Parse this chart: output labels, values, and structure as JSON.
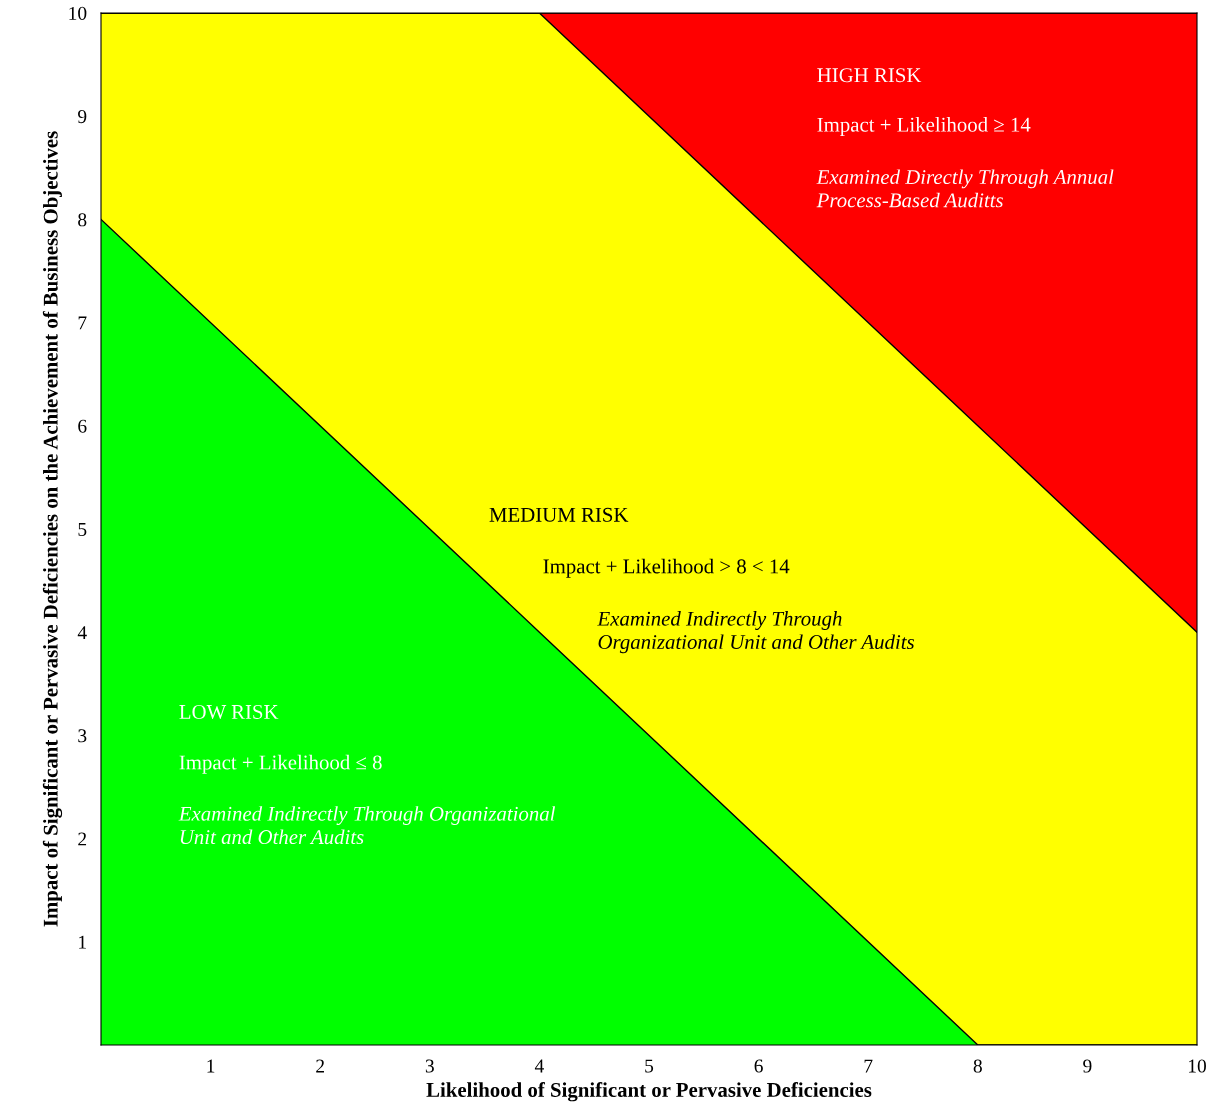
{
  "chart_data": {
    "type": "area",
    "stacked": true,
    "x": [
      0,
      4,
      8,
      10
    ],
    "series": [
      {
        "color": "#00ff00",
        "values": [
          8,
          4,
          0,
          0
        ]
      },
      {
        "color": "#ffff00",
        "values": [
          2,
          6,
          6,
          4
        ]
      },
      {
        "color": "#ff0000",
        "values": [
          0,
          0,
          4,
          6
        ]
      }
    ],
    "xlabel": "Likelihood of Significant or Pervasive Deficiencies",
    "ylabel": "Impact of Significant or Pervasive Deficiencies on the Achievement of Business Objectives",
    "xlim": [
      0,
      10
    ],
    "ylim": [
      0,
      10
    ],
    "xticks": [
      1,
      2,
      3,
      4,
      5,
      6,
      7,
      8,
      9,
      10
    ],
    "yticks": [
      1,
      2,
      3,
      4,
      5,
      6,
      7,
      8,
      9,
      10
    ],
    "grid": false,
    "legend": false,
    "annotations": [
      "HIGH RISK",
      "Impact + Likelihood ≥ 14",
      "Examined Directly Through Annual\nProcess-Based Auditts",
      "MEDIUM RISK",
      "Impact + Likelihood > 8 < 14",
      "Examined Indirectly Through\nOrganizational Unit and Other Audits",
      "LOW RISK",
      "Impact + Likelihood ≤ 8",
      "Examined Indirectly Through Organizational\nUnit and Other Audits"
    ]
  }
}
